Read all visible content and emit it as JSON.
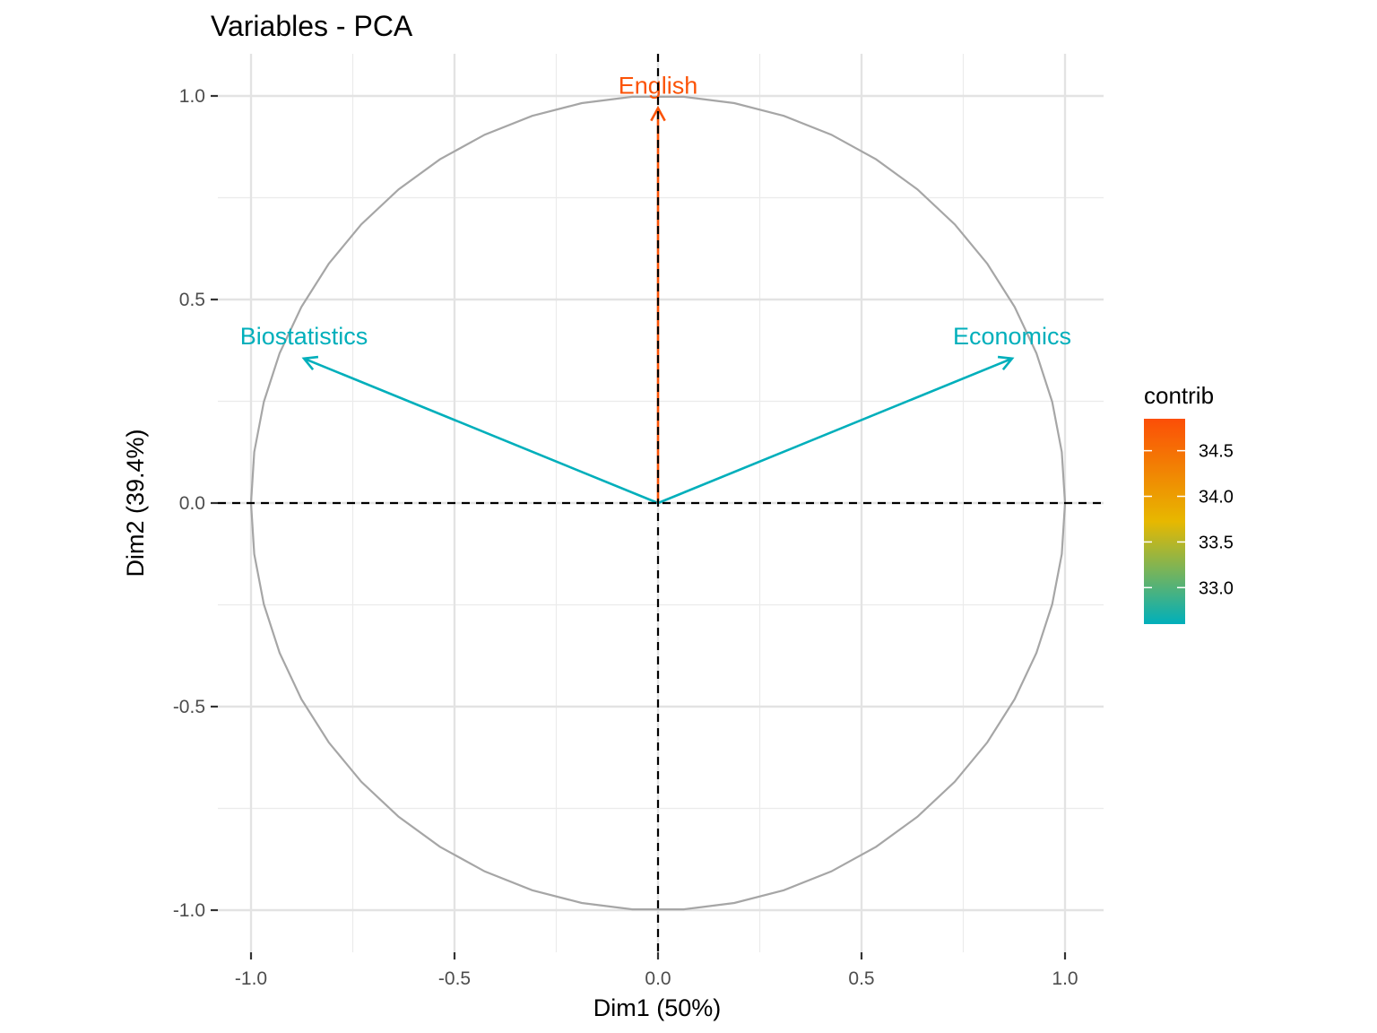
{
  "chart_data": {
    "type": "scatter",
    "title": "Variables - PCA",
    "xlabel": "Dim1 (50%)",
    "ylabel": "Dim2 (39.4%)",
    "xlim": [
      -1.0,
      1.0
    ],
    "ylim": [
      -1.0,
      1.0
    ],
    "x_ticks": [
      "-1.0",
      "-0.5",
      "0.0",
      "0.5",
      "1.0"
    ],
    "y_ticks": [
      "1.0",
      "0.5",
      "0.0",
      "-0.5",
      "-1.0"
    ],
    "grid": true,
    "correlation_circle": true,
    "reference_lines": {
      "x": 0,
      "y": 0,
      "style": "dashed"
    },
    "variables": [
      {
        "name": "Biostatistics",
        "x": -0.87,
        "y": 0.355,
        "contrib": 32.6
      },
      {
        "name": "English",
        "x": 0.0,
        "y": 0.97,
        "contrib": 34.8
      },
      {
        "name": "Economics",
        "x": 0.87,
        "y": 0.355,
        "contrib": 32.6
      }
    ],
    "legend": {
      "title": "contrib",
      "position": "right",
      "range": [
        32.6,
        34.85
      ],
      "ticks": [
        "34.5",
        "34.0",
        "33.5",
        "33.0"
      ],
      "colors": [
        "#00AFBB",
        "#E7B800",
        "#FC4E07"
      ]
    }
  }
}
